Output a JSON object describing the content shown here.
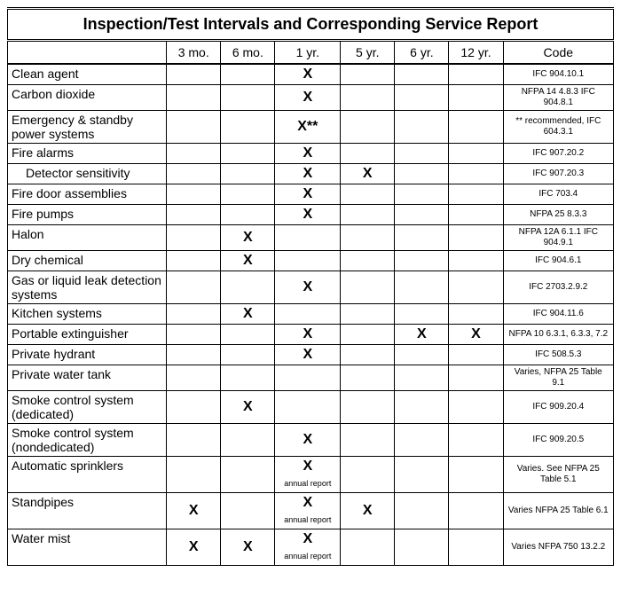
{
  "title": "Inspection/Test Intervals and Corresponding Service Report",
  "columns": [
    "",
    "3 mo.",
    "6 mo.",
    "1 yr.",
    "5 yr.",
    "6 yr.",
    "12 yr.",
    "Code"
  ],
  "mark": "X",
  "rows": [
    {
      "label": "Clean agent",
      "indent": false,
      "marks": [
        "",
        "",
        "X",
        "",
        "",
        ""
      ],
      "code": "IFC 904.10.1"
    },
    {
      "label": "Carbon dioxide",
      "indent": false,
      "marks": [
        "",
        "",
        "X",
        "",
        "",
        ""
      ],
      "code": "NFPA 14 4.8.3 IFC 904.8.1"
    },
    {
      "label": "Emergency & standby power systems",
      "indent": false,
      "marks": [
        "",
        "",
        "X**",
        "",
        "",
        ""
      ],
      "code": "** recommended, IFC 604.3.1"
    },
    {
      "label": "Fire alarms",
      "indent": false,
      "marks": [
        "",
        "",
        "X",
        "",
        "",
        ""
      ],
      "code": "IFC 907.20.2"
    },
    {
      "label": "Detector sensitivity",
      "indent": true,
      "marks": [
        "",
        "",
        "X",
        "X",
        "",
        ""
      ],
      "code": "IFC 907.20.3"
    },
    {
      "label": "Fire door assemblies",
      "indent": false,
      "marks": [
        "",
        "",
        "X",
        "",
        "",
        ""
      ],
      "code": "IFC 703.4"
    },
    {
      "label": "Fire pumps",
      "indent": false,
      "marks": [
        "",
        "",
        "X",
        "",
        "",
        ""
      ],
      "code": "NFPA 25 8.3.3"
    },
    {
      "label": "Halon",
      "indent": false,
      "marks": [
        "",
        "X",
        "",
        "",
        "",
        ""
      ],
      "code": "NFPA 12A 6.1.1 IFC 904.9.1"
    },
    {
      "label": "Dry chemical",
      "indent": false,
      "marks": [
        "",
        "X",
        "",
        "",
        "",
        ""
      ],
      "code": "IFC 904.6.1"
    },
    {
      "label": "Gas or liquid leak detection systems",
      "indent": false,
      "marks": [
        "",
        "",
        "X",
        "",
        "",
        ""
      ],
      "code": "IFC 2703.2.9.2"
    },
    {
      "label": "Kitchen systems",
      "indent": false,
      "marks": [
        "",
        "X",
        "",
        "",
        "",
        ""
      ],
      "code": "IFC 904.11.6"
    },
    {
      "label": "Portable extinguisher",
      "indent": false,
      "marks": [
        "",
        "",
        "X",
        "",
        "X",
        "X"
      ],
      "code": "NFPA 10 6.3.1, 6.3.3, 7.2"
    },
    {
      "label": "Private hydrant",
      "indent": false,
      "marks": [
        "",
        "",
        "X",
        "",
        "",
        ""
      ],
      "code": "IFC 508.5.3"
    },
    {
      "label": "Private water tank",
      "indent": false,
      "marks": [
        "",
        "",
        "",
        "",
        "",
        ""
      ],
      "code": "Varies, NFPA 25 Table 9.1"
    },
    {
      "label": "Smoke control system (dedicated)",
      "indent": false,
      "marks": [
        "",
        "X",
        "",
        "",
        "",
        ""
      ],
      "code": "IFC 909.20.4"
    },
    {
      "label": "Smoke control system (nondedicated)",
      "indent": false,
      "marks": [
        "",
        "",
        "X",
        "",
        "",
        ""
      ],
      "code": "IFC 909.20.5"
    },
    {
      "label": "Automatic sprinklers",
      "indent": false,
      "marks": [
        "",
        "",
        "X|annual report",
        "",
        "",
        ""
      ],
      "code": "Varies. See NFPA 25 Table 5.1"
    },
    {
      "label": "Standpipes",
      "indent": false,
      "marks": [
        "X",
        "",
        "X|annual report",
        "X",
        "",
        ""
      ],
      "code": "Varies NFPA  25 Table 6.1"
    },
    {
      "label": "Water mist",
      "indent": false,
      "marks": [
        "X",
        "X",
        "X|annual report",
        "",
        "",
        ""
      ],
      "code": "Varies NFPA 750 13.2.2"
    }
  ]
}
